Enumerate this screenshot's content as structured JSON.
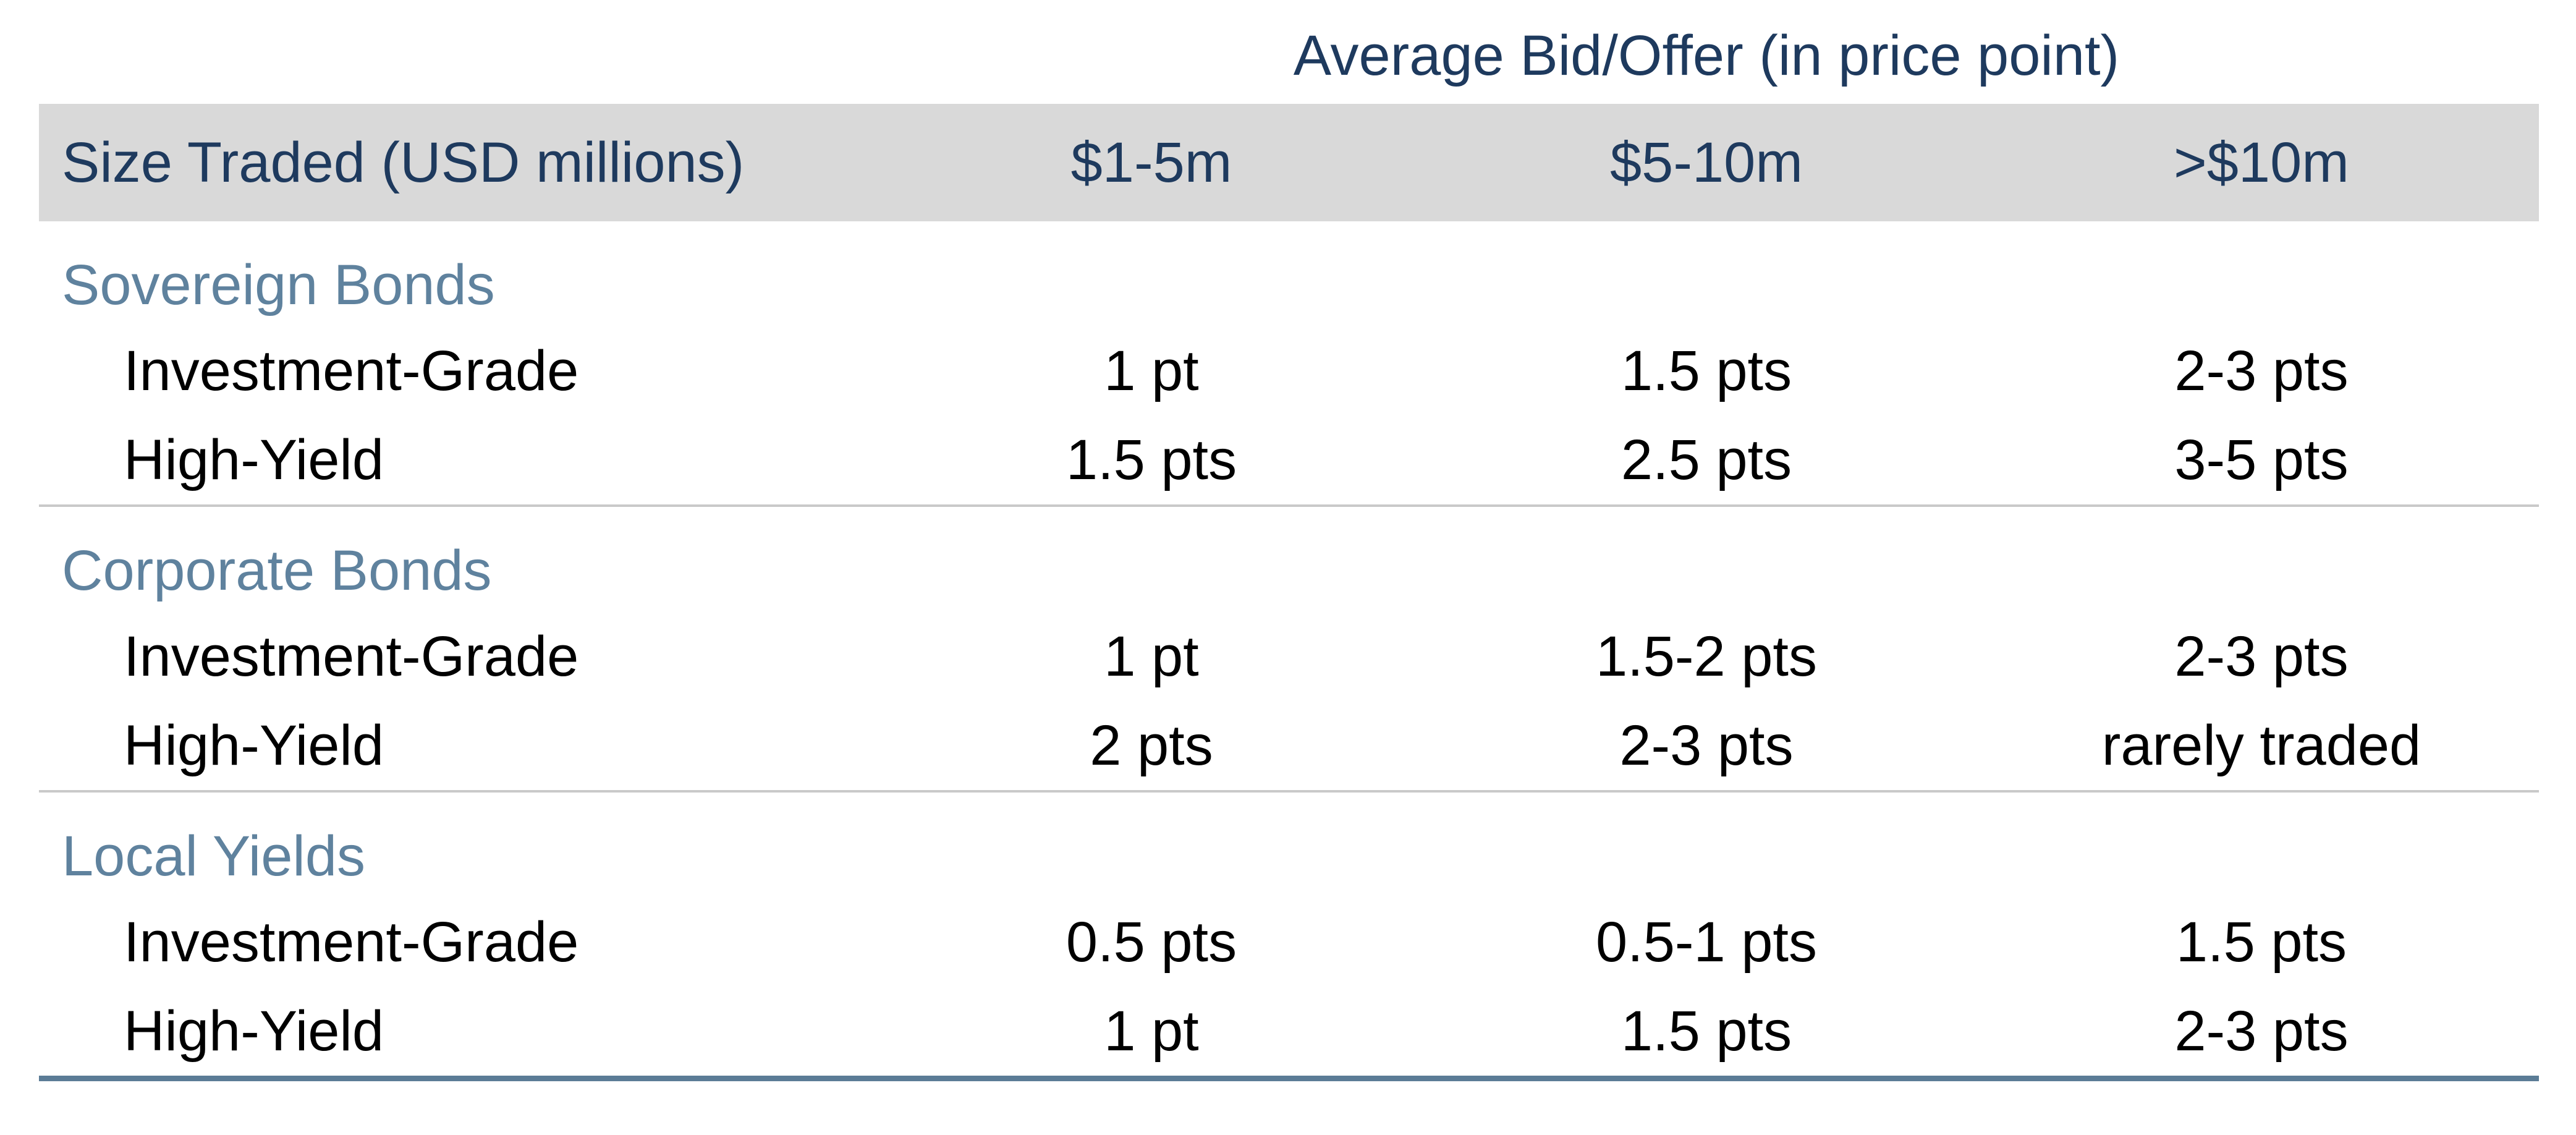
{
  "title": "Average Bid/Offer (in price point)",
  "colors": {
    "header_text": "#1e3a5e",
    "section_header_text": "#5f829e",
    "data_text": "#000000",
    "header_band_bg": "#d9d9d9",
    "section_divider": "#c9c9c9",
    "bottom_rule": "#5b7c96",
    "background": "#ffffff"
  },
  "table": {
    "header": {
      "size_traded_label": "Size Traded (USD millions)",
      "columns": [
        "$1-5m",
        "$5-10m",
        ">$10m"
      ]
    },
    "sections": [
      {
        "name": "Sovereign Bonds",
        "rows": [
          {
            "label": "Investment-Grade",
            "values": [
              "1 pt",
              "1.5 pts",
              "2-3 pts"
            ]
          },
          {
            "label": "High-Yield",
            "values": [
              "1.5 pts",
              "2.5 pts",
              "3-5 pts"
            ]
          }
        ]
      },
      {
        "name": "Corporate Bonds",
        "rows": [
          {
            "label": "Investment-Grade",
            "values": [
              "1 pt",
              "1.5-2 pts",
              "2-3 pts"
            ]
          },
          {
            "label": "High-Yield",
            "values": [
              "2 pts",
              "2-3 pts",
              "rarely traded"
            ]
          }
        ]
      },
      {
        "name": "Local Yields",
        "rows": [
          {
            "label": "Investment-Grade",
            "values": [
              "0.5 pts",
              "0.5-1 pts",
              "1.5 pts"
            ]
          },
          {
            "label": "High-Yield",
            "values": [
              "1 pt",
              "1.5 pts",
              "2-3 pts"
            ]
          }
        ]
      }
    ]
  },
  "chart_data": {
    "type": "table",
    "title": "Average Bid/Offer (in price point)",
    "columns": [
      "Size Traded (USD millions)",
      "$1-5m",
      "$5-10m",
      ">$10m"
    ],
    "rows": [
      [
        "Sovereign Bonds",
        "",
        "",
        ""
      ],
      [
        "Investment-Grade",
        "1 pt",
        "1.5 pts",
        "2-3 pts"
      ],
      [
        "High-Yield",
        "1.5 pts",
        "2.5 pts",
        "3-5 pts"
      ],
      [
        "Corporate Bonds",
        "",
        "",
        ""
      ],
      [
        "Investment-Grade",
        "1 pt",
        "1.5-2 pts",
        "2-3 pts"
      ],
      [
        "High-Yield",
        "2 pts",
        "2-3 pts",
        "rarely traded"
      ],
      [
        "Local Yields",
        "",
        "",
        ""
      ],
      [
        "Investment-Grade",
        "0.5 pts",
        "0.5-1 pts",
        "1.5 pts"
      ],
      [
        "High-Yield",
        "1 pt",
        "1.5 pts",
        "2-3 pts"
      ]
    ],
    "layout": {
      "header_band": true,
      "section_dividers": true,
      "value_alignment": "center",
      "label_alignment": "left"
    }
  }
}
